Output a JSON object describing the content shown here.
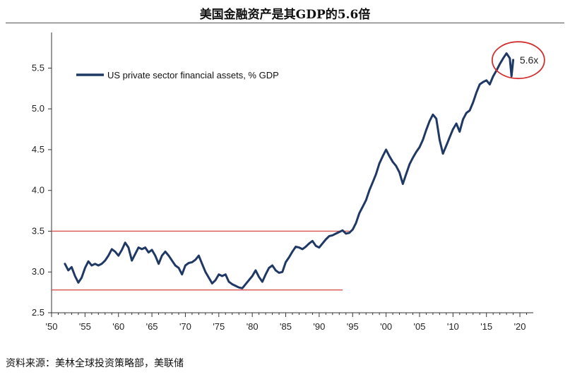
{
  "page": {
    "title": "美国金融资产是其GDP的5.6倍",
    "source": "资料来源：美林全球投资策略部，美联储"
  },
  "chart_data": {
    "type": "line",
    "title": "美国金融资产是其GDP的5.6倍",
    "xlabel": "",
    "ylabel": "",
    "xlim": [
      1950,
      2022
    ],
    "ylim": [
      2.5,
      5.85
    ],
    "x_ticks": [
      1950,
      1955,
      1960,
      1965,
      1970,
      1975,
      1980,
      1985,
      1990,
      1995,
      2000,
      2005,
      2010,
      2015,
      2020
    ],
    "x_tick_labels": [
      "'50",
      "'55",
      "'60",
      "'65",
      "'70",
      "'75",
      "'80",
      "'85",
      "'90",
      "'95",
      "'00",
      "'05",
      "'10",
      "'15",
      "'20"
    ],
    "y_ticks": [
      2.5,
      3.0,
      3.5,
      4.0,
      4.5,
      5.0,
      5.5
    ],
    "y_tick_labels": [
      "2.5",
      "3.0",
      "3.5",
      "4.0",
      "4.5",
      "5.0",
      "5.5"
    ],
    "grid": false,
    "legend_position": "top-left",
    "series": [
      {
        "name": "US private sector financial assets, % GDP",
        "color": "#1f3864",
        "x": [
          1952.0,
          1952.5,
          1953.0,
          1953.5,
          1954.0,
          1954.5,
          1955.0,
          1955.5,
          1956.0,
          1956.5,
          1957.0,
          1957.5,
          1958.0,
          1958.5,
          1959.0,
          1959.5,
          1960.0,
          1960.5,
          1961.0,
          1961.5,
          1962.0,
          1962.5,
          1963.0,
          1963.5,
          1964.0,
          1964.5,
          1965.0,
          1965.5,
          1966.0,
          1966.5,
          1967.0,
          1967.5,
          1968.0,
          1968.5,
          1969.0,
          1969.5,
          1970.0,
          1970.5,
          1971.0,
          1971.5,
          1972.0,
          1972.5,
          1973.0,
          1973.5,
          1974.0,
          1974.5,
          1975.0,
          1975.5,
          1976.0,
          1976.5,
          1977.0,
          1977.5,
          1978.0,
          1978.5,
          1979.0,
          1979.5,
          1980.0,
          1980.5,
          1981.0,
          1981.5,
          1982.0,
          1982.5,
          1983.0,
          1983.5,
          1984.0,
          1984.5,
          1985.0,
          1985.5,
          1986.0,
          1986.5,
          1987.0,
          1987.5,
          1988.0,
          1988.5,
          1989.0,
          1989.5,
          1990.0,
          1990.5,
          1991.0,
          1991.5,
          1992.0,
          1992.5,
          1993.0,
          1993.5,
          1994.0,
          1994.5,
          1995.0,
          1995.5,
          1996.0,
          1996.5,
          1997.0,
          1997.5,
          1998.0,
          1998.5,
          1999.0,
          1999.5,
          2000.0,
          2000.5,
          2001.0,
          2001.5,
          2002.0,
          2002.5,
          2003.0,
          2003.5,
          2004.0,
          2004.5,
          2005.0,
          2005.5,
          2006.0,
          2006.5,
          2007.0,
          2007.5,
          2008.0,
          2008.5,
          2009.0,
          2009.5,
          2010.0,
          2010.5,
          2011.0,
          2011.5,
          2012.0,
          2012.5,
          2013.0,
          2013.5,
          2014.0,
          2014.5,
          2015.0,
          2015.5,
          2016.0,
          2016.5,
          2017.0,
          2017.5,
          2018.0,
          2018.5,
          2018.75,
          2019.0
        ],
        "values": [
          3.1,
          3.02,
          3.06,
          2.95,
          2.87,
          2.93,
          3.05,
          3.13,
          3.08,
          3.1,
          3.08,
          3.1,
          3.14,
          3.2,
          3.28,
          3.25,
          3.2,
          3.27,
          3.36,
          3.3,
          3.14,
          3.22,
          3.3,
          3.28,
          3.3,
          3.24,
          3.27,
          3.2,
          3.1,
          3.2,
          3.25,
          3.2,
          3.14,
          3.08,
          3.05,
          2.97,
          3.08,
          3.11,
          3.12,
          3.15,
          3.2,
          3.1,
          3.0,
          2.93,
          2.86,
          2.9,
          2.97,
          2.95,
          2.97,
          2.88,
          2.85,
          2.83,
          2.81,
          2.8,
          2.85,
          2.9,
          2.95,
          3.02,
          2.94,
          2.88,
          2.97,
          3.05,
          3.08,
          3.02,
          2.99,
          3.0,
          3.12,
          3.18,
          3.25,
          3.31,
          3.3,
          3.28,
          3.31,
          3.35,
          3.38,
          3.32,
          3.3,
          3.35,
          3.4,
          3.44,
          3.45,
          3.47,
          3.49,
          3.51,
          3.47,
          3.48,
          3.52,
          3.6,
          3.72,
          3.8,
          3.88,
          4.0,
          4.1,
          4.2,
          4.33,
          4.42,
          4.5,
          4.42,
          4.35,
          4.3,
          4.22,
          4.08,
          4.2,
          4.32,
          4.4,
          4.47,
          4.53,
          4.62,
          4.74,
          4.85,
          4.93,
          4.88,
          4.62,
          4.45,
          4.55,
          4.65,
          4.75,
          4.82,
          4.72,
          4.87,
          4.95,
          4.98,
          5.08,
          5.2,
          5.3,
          5.33,
          5.35,
          5.3,
          5.4,
          5.47,
          5.55,
          5.62,
          5.68,
          5.62,
          5.4,
          5.6
        ]
      }
    ],
    "reference_lines": [
      {
        "y": 3.5,
        "x_from": 1950,
        "x_to": 1994.5,
        "color": "#d9534f"
      },
      {
        "y": 2.78,
        "x_from": 1950,
        "x_to": 1993.5,
        "color": "#d9534f"
      }
    ],
    "annotation": {
      "text": "5.6x",
      "x": 2018.5,
      "y": 5.58,
      "circle_color": "#d32f2f"
    }
  }
}
